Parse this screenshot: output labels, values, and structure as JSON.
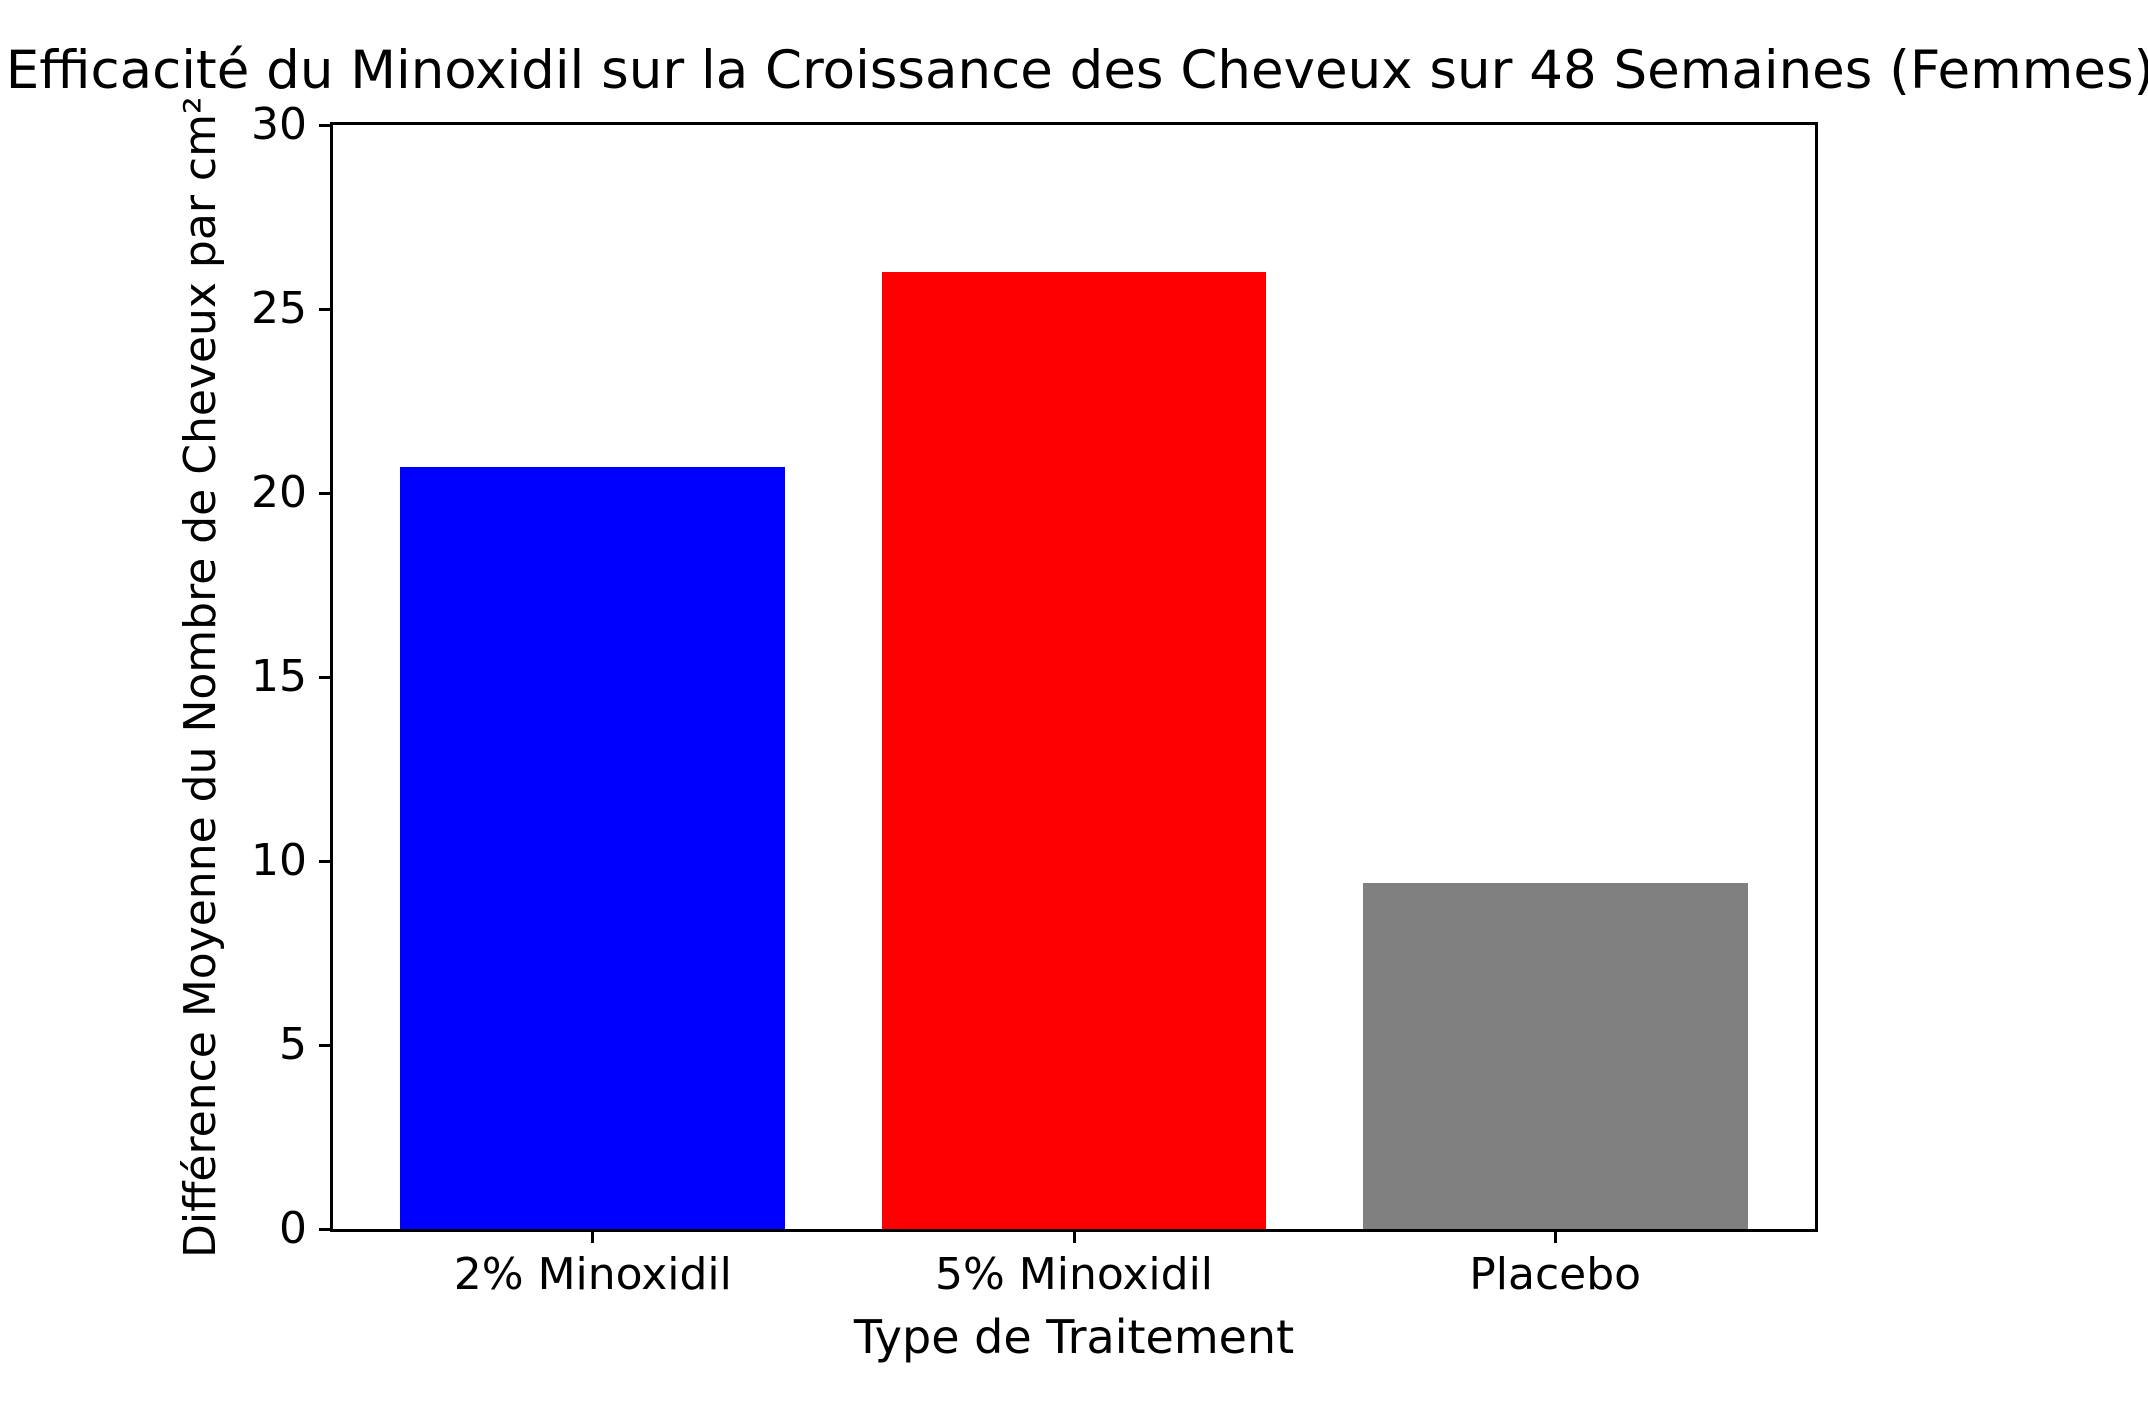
{
  "chart_data": {
    "type": "bar",
    "title": "Efficacité du Minoxidil sur la Croissance des Cheveux sur 48 Semaines (Femmes)",
    "xlabel": "Type de Traitement",
    "ylabel": "Différence Moyenne du Nombre de Cheveux par cm²",
    "categories": [
      "2% Minoxidil",
      "5% Minoxidil",
      "Placebo"
    ],
    "values": [
      20.7,
      26.0,
      9.4
    ],
    "bar_colors": [
      "#0000ff",
      "#ff0000",
      "#808080"
    ],
    "ylim": [
      0,
      30
    ],
    "yticks": [
      0,
      5,
      10,
      15,
      20,
      25,
      30
    ],
    "grid": false,
    "legend": "none",
    "bar_width_fraction": 0.8,
    "x_margin_fraction": 0.05,
    "axis_color": "#000000",
    "background_color": "#ffffff"
  }
}
